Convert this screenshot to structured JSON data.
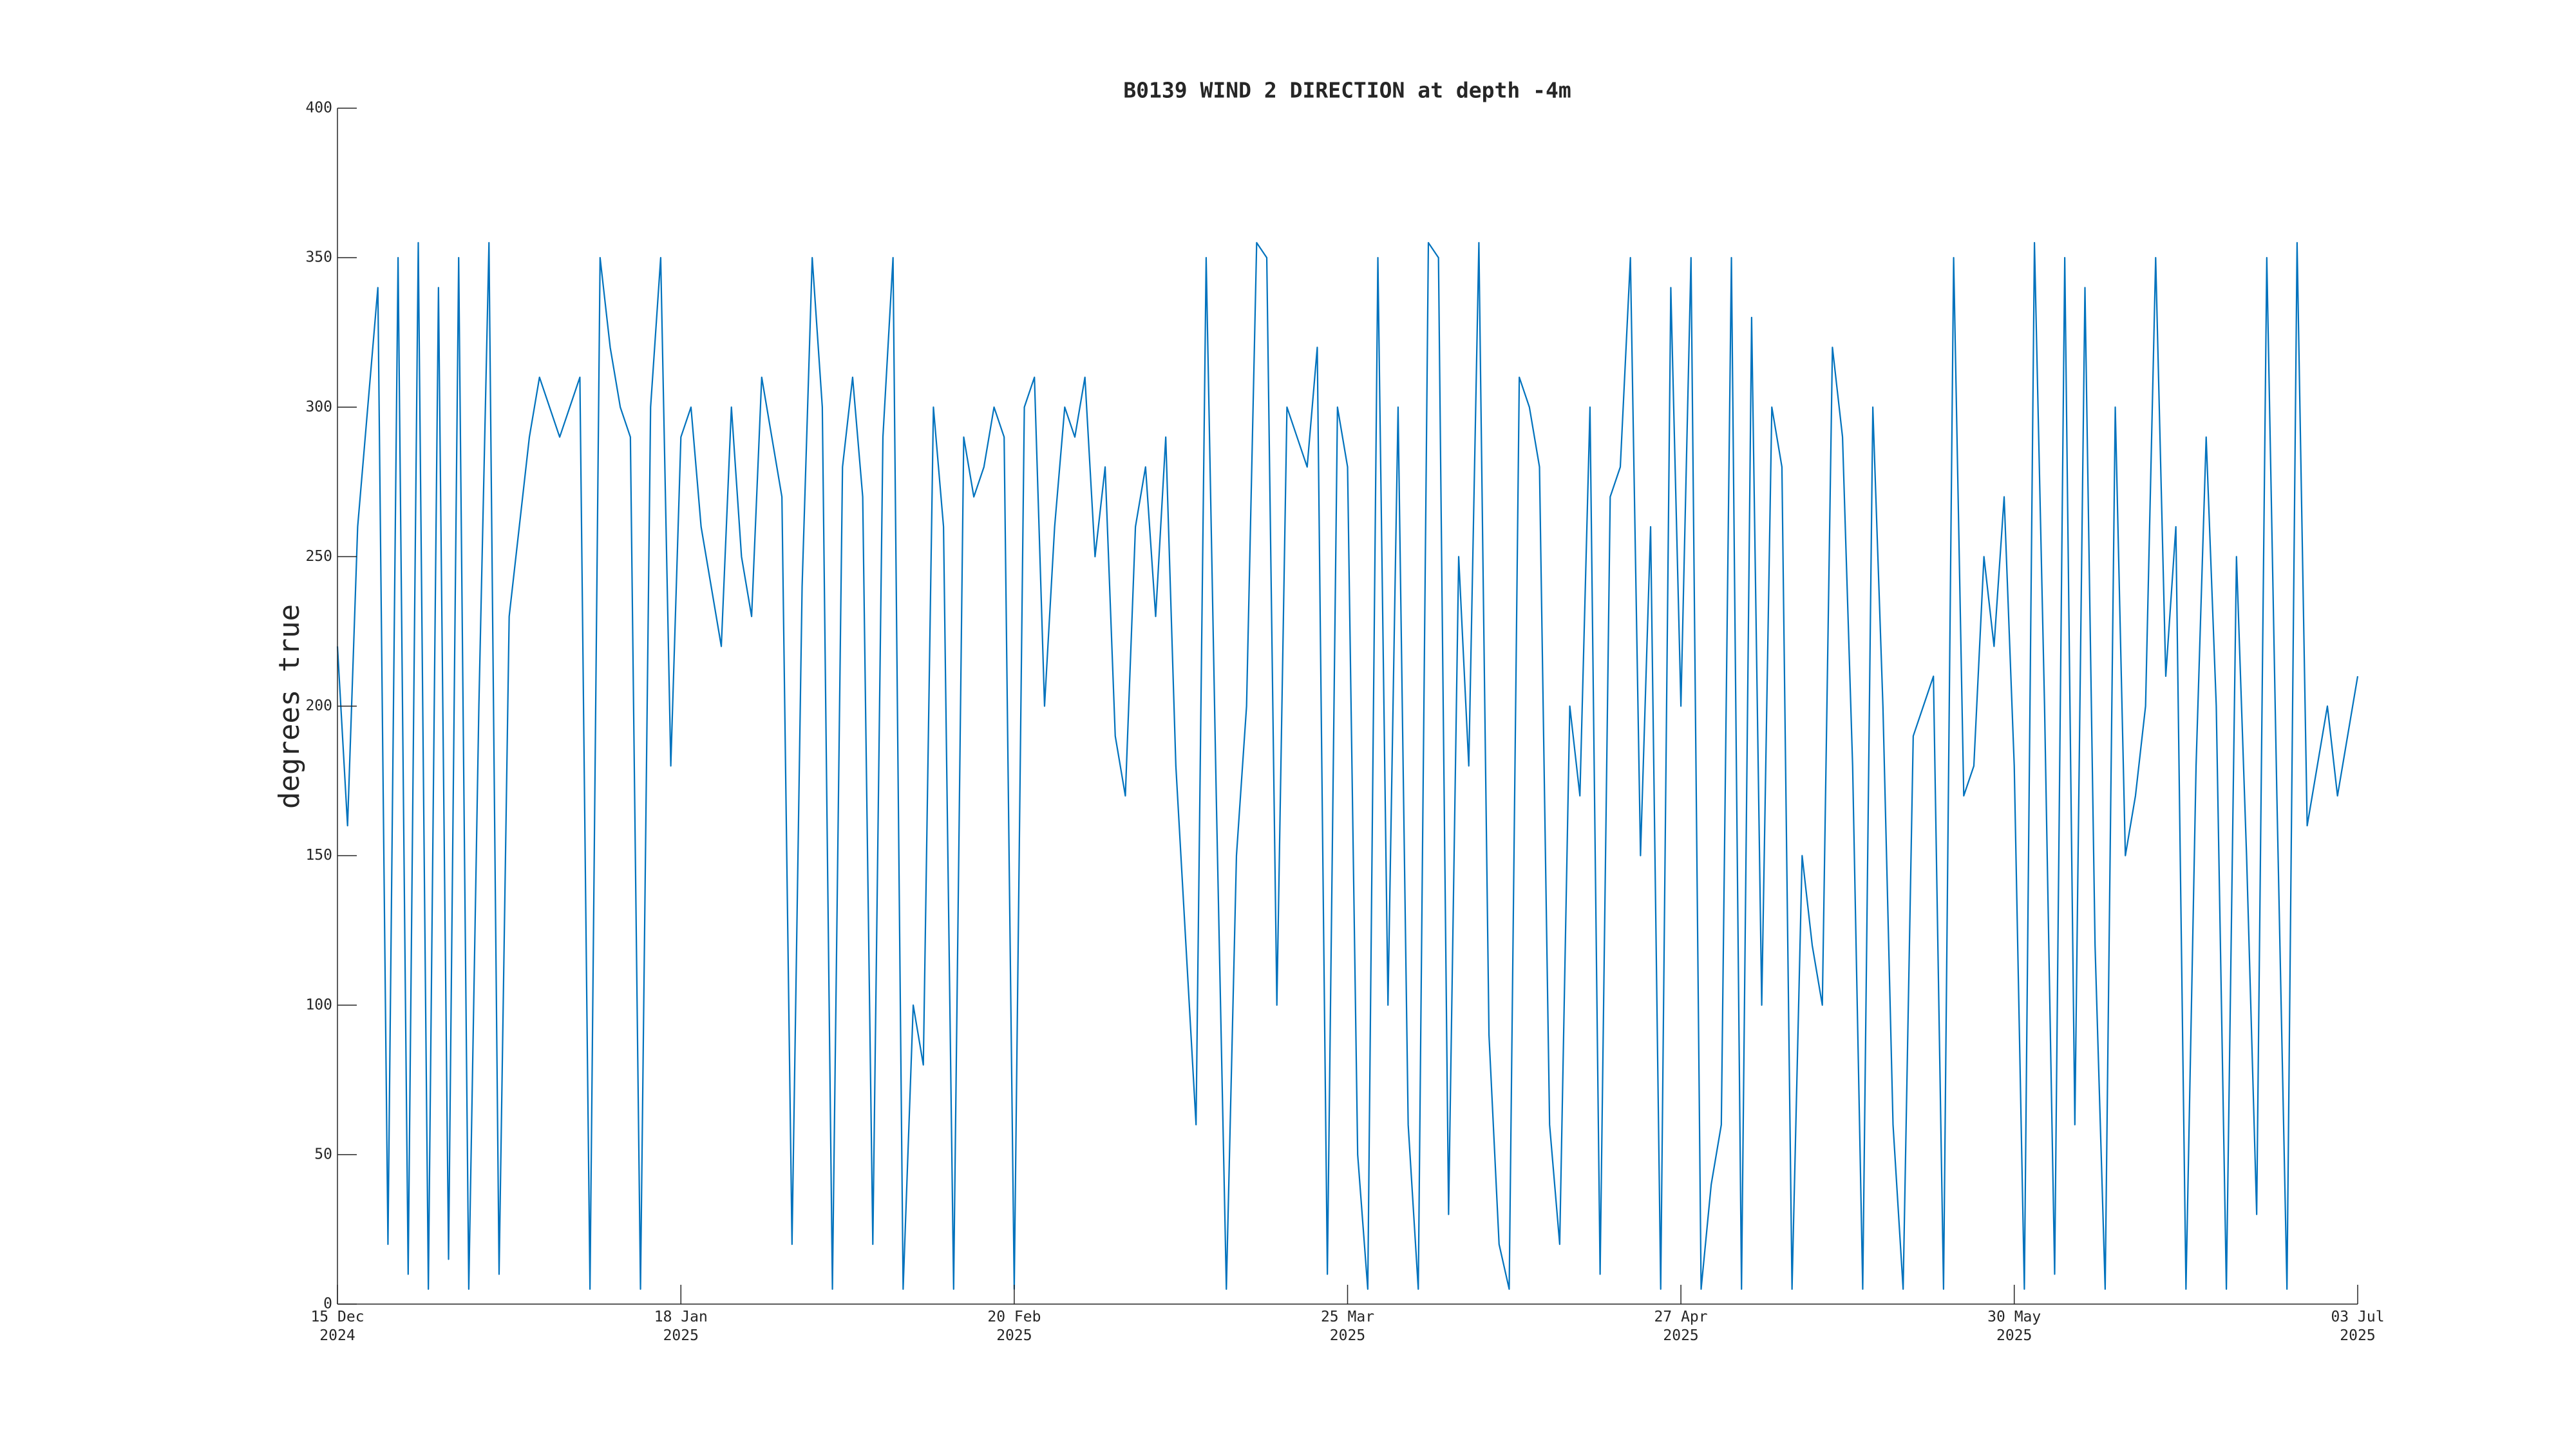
{
  "chart_data": {
    "type": "line",
    "title": "B0139 WIND 2 DIRECTION at depth -4m",
    "y_label": "degrees true",
    "color": "#0072bd",
    "x": [
      "2024-12-15",
      "2024-12-16",
      "2024-12-17",
      "2024-12-18",
      "2024-12-19",
      "2024-12-20",
      "2024-12-21",
      "2024-12-22",
      "2024-12-23",
      "2024-12-24",
      "2024-12-25",
      "2024-12-26",
      "2024-12-27",
      "2024-12-28",
      "2024-12-29",
      "2024-12-30",
      "2024-12-31",
      "2025-01-01",
      "2025-01-02",
      "2025-01-03",
      "2025-01-04",
      "2025-01-05",
      "2025-01-06",
      "2025-01-07",
      "2025-01-08",
      "2025-01-09",
      "2025-01-10",
      "2025-01-11",
      "2025-01-12",
      "2025-01-13",
      "2025-01-14",
      "2025-01-15",
      "2025-01-16",
      "2025-01-17",
      "2025-01-18",
      "2025-01-19",
      "2025-01-20",
      "2025-01-21",
      "2025-01-22",
      "2025-01-23",
      "2025-01-24",
      "2025-01-25",
      "2025-01-26",
      "2025-01-27",
      "2025-01-28",
      "2025-01-29",
      "2025-01-30",
      "2025-01-31",
      "2025-02-01",
      "2025-02-02",
      "2025-02-03",
      "2025-02-04",
      "2025-02-05",
      "2025-02-06",
      "2025-02-07",
      "2025-02-08",
      "2025-02-09",
      "2025-02-10",
      "2025-02-11",
      "2025-02-12",
      "2025-02-13",
      "2025-02-14",
      "2025-02-15",
      "2025-02-16",
      "2025-02-17",
      "2025-02-18",
      "2025-02-19",
      "2025-02-20",
      "2025-02-21",
      "2025-02-22",
      "2025-02-23",
      "2025-02-24",
      "2025-02-25",
      "2025-02-26",
      "2025-02-27",
      "2025-02-28",
      "2025-03-01",
      "2025-03-02",
      "2025-03-03",
      "2025-03-04",
      "2025-03-05",
      "2025-03-06",
      "2025-03-07",
      "2025-03-08",
      "2025-03-09",
      "2025-03-10",
      "2025-03-11",
      "2025-03-12",
      "2025-03-13",
      "2025-03-14",
      "2025-03-15",
      "2025-03-16",
      "2025-03-17",
      "2025-03-18",
      "2025-03-19",
      "2025-03-20",
      "2025-03-21",
      "2025-03-22",
      "2025-03-23",
      "2025-03-24",
      "2025-03-25",
      "2025-03-26",
      "2025-03-27",
      "2025-03-28",
      "2025-03-29",
      "2025-03-30",
      "2025-03-31",
      "2025-04-01",
      "2025-04-02",
      "2025-04-03",
      "2025-04-04",
      "2025-04-05",
      "2025-04-06",
      "2025-04-07",
      "2025-04-08",
      "2025-04-09",
      "2025-04-10",
      "2025-04-11",
      "2025-04-12",
      "2025-04-13",
      "2025-04-14",
      "2025-04-15",
      "2025-04-16",
      "2025-04-17",
      "2025-04-18",
      "2025-04-19",
      "2025-04-20",
      "2025-04-21",
      "2025-04-22",
      "2025-04-23",
      "2025-04-24",
      "2025-04-25",
      "2025-04-26",
      "2025-04-27",
      "2025-04-28",
      "2025-04-29",
      "2025-04-30",
      "2025-05-01",
      "2025-05-02",
      "2025-05-03",
      "2025-05-04",
      "2025-05-05",
      "2025-05-06",
      "2025-05-07",
      "2025-05-08",
      "2025-05-09",
      "2025-05-10",
      "2025-05-11",
      "2025-05-12",
      "2025-05-13",
      "2025-05-14",
      "2025-05-15",
      "2025-05-16",
      "2025-05-17",
      "2025-05-18",
      "2025-05-19",
      "2025-05-20",
      "2025-05-21",
      "2025-05-22",
      "2025-05-23",
      "2025-05-24",
      "2025-05-25",
      "2025-05-26",
      "2025-05-27",
      "2025-05-28",
      "2025-05-29",
      "2025-05-30",
      "2025-05-31",
      "2025-06-01",
      "2025-06-02",
      "2025-06-03",
      "2025-06-04",
      "2025-06-05",
      "2025-06-06",
      "2025-06-07",
      "2025-06-08",
      "2025-06-09",
      "2025-06-10",
      "2025-06-11",
      "2025-06-12",
      "2025-06-13",
      "2025-06-14",
      "2025-06-15",
      "2025-06-16",
      "2025-06-17",
      "2025-06-18",
      "2025-06-19",
      "2025-06-20",
      "2025-06-21",
      "2025-06-22",
      "2025-06-23",
      "2025-06-24",
      "2025-06-25",
      "2025-06-26",
      "2025-06-27",
      "2025-06-28",
      "2025-06-29",
      "2025-06-30",
      "2025-07-01",
      "2025-07-02",
      "2025-07-03"
    ],
    "values": [
      220,
      160,
      260,
      300,
      340,
      20,
      350,
      10,
      355,
      5,
      340,
      15,
      350,
      5,
      200,
      355,
      10,
      230,
      260,
      290,
      310,
      300,
      290,
      300,
      310,
      5,
      350,
      320,
      300,
      290,
      5,
      300,
      350,
      180,
      290,
      300,
      260,
      240,
      220,
      300,
      250,
      230,
      310,
      290,
      270,
      20,
      240,
      350,
      300,
      5,
      280,
      310,
      270,
      20,
      290,
      350,
      5,
      100,
      80,
      300,
      260,
      5,
      290,
      270,
      280,
      300,
      290,
      5,
      300,
      310,
      200,
      260,
      300,
      290,
      310,
      250,
      280,
      190,
      170,
      260,
      280,
      230,
      290,
      180,
      120,
      60,
      350,
      170,
      5,
      150,
      200,
      355,
      350,
      100,
      300,
      290,
      280,
      320,
      10,
      300,
      280,
      50,
      5,
      350,
      100,
      300,
      60,
      5,
      355,
      350,
      30,
      250,
      180,
      355,
      90,
      20,
      5,
      310,
      300,
      280,
      60,
      20,
      200,
      170,
      300,
      10,
      270,
      280,
      350,
      150,
      260,
      5,
      340,
      200,
      350,
      5,
      40,
      60,
      350,
      5,
      330,
      100,
      300,
      280,
      5,
      150,
      120,
      100,
      320,
      290,
      180,
      5,
      300,
      200,
      60,
      5,
      190,
      200,
      210,
      5,
      350,
      170,
      180,
      250,
      220,
      270,
      180,
      5,
      355,
      200,
      10,
      350,
      60,
      340,
      120,
      5,
      300,
      150,
      170,
      200,
      350,
      210,
      260,
      5,
      180,
      290,
      200,
      5,
      250,
      150,
      30,
      350,
      170,
      5,
      355,
      160,
      180,
      200,
      170,
      190,
      210
    ],
    "xlim": [
      "2024-12-15",
      "2025-07-03"
    ],
    "xticks": [
      {
        "value": "2024-12-15",
        "label": "15 Dec\n2024"
      },
      {
        "value": "2025-01-18",
        "label": "18 Jan\n2025"
      },
      {
        "value": "2025-02-20",
        "label": "20 Feb\n2025"
      },
      {
        "value": "2025-03-25",
        "label": "25 Mar\n2025"
      },
      {
        "value": "2025-04-27",
        "label": "27 Apr\n2025"
      },
      {
        "value": "2025-05-30",
        "label": "30 May\n2025"
      },
      {
        "value": "2025-07-03",
        "label": "03 Jul\n2025"
      }
    ],
    "ylim": [
      0,
      400
    ],
    "yticks": [
      0,
      50,
      100,
      150,
      200,
      250,
      300,
      350,
      400
    ]
  }
}
